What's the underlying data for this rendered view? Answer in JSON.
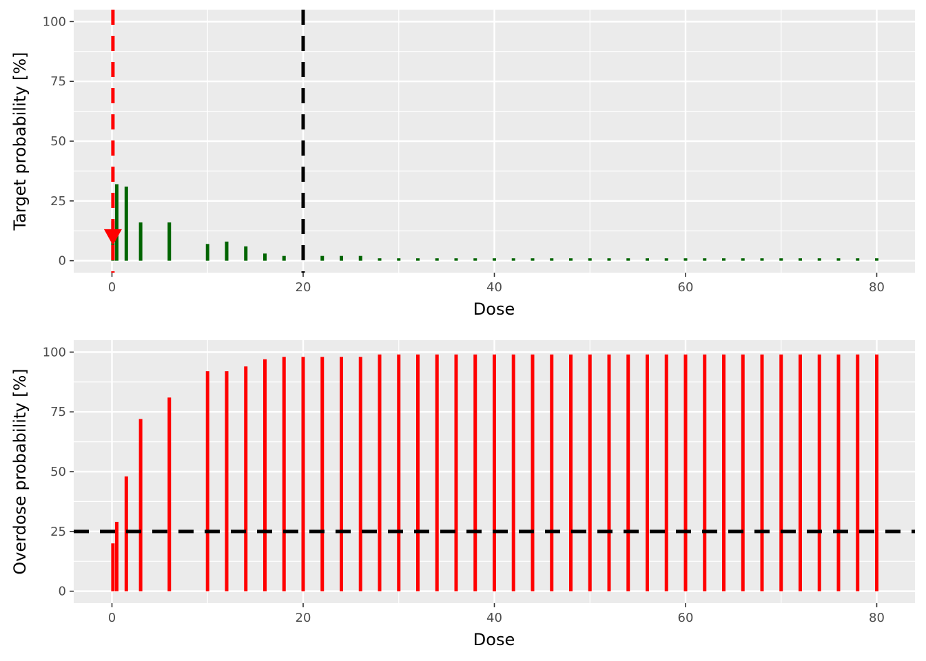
{
  "colors": {
    "panel_bg": "#EBEBEB",
    "grid": "#FFFFFF",
    "target_bar": "#006400",
    "overdose_bar": "#FF0000",
    "ref_line_black": "#000000",
    "ref_line_red": "#FF0000"
  },
  "chart_data": [
    {
      "type": "bar",
      "xlabel": "Dose",
      "ylabel": "Target probability [%]",
      "xlim": [
        -4,
        84
      ],
      "ylim": [
        -5,
        105
      ],
      "xticks": [
        0,
        20,
        40,
        60,
        80
      ],
      "yticks": [
        0,
        25,
        50,
        75,
        100
      ],
      "grid": true,
      "x": [
        0.1,
        0.5,
        1.5,
        3,
        6,
        10,
        12,
        14,
        16,
        18,
        22,
        24,
        26,
        28,
        30,
        32,
        34,
        36,
        38,
        40,
        42,
        44,
        46,
        48,
        50,
        52,
        54,
        56,
        58,
        60,
        62,
        64,
        66,
        68,
        70,
        72,
        74,
        76,
        78,
        80
      ],
      "values": [
        16.5,
        32,
        31,
        16,
        16,
        7,
        8,
        6,
        3,
        2,
        2,
        2,
        2,
        1,
        1,
        1,
        1,
        1,
        1,
        1,
        1,
        1,
        1,
        1,
        1,
        1,
        1,
        1,
        1,
        1,
        1,
        1,
        1,
        1,
        1,
        1,
        1,
        1,
        1,
        1
      ],
      "bar_color": "target_bar",
      "vlines": [
        {
          "x": 20,
          "color": "ref_line_black",
          "dashed": true
        },
        {
          "x": 0.1,
          "color": "ref_line_red",
          "dashed": true
        }
      ],
      "marker": {
        "x": 0.1,
        "y": 10,
        "shape": "down-triangle",
        "color": "ref_line_red"
      }
    },
    {
      "type": "bar",
      "xlabel": "Dose",
      "ylabel": "Overdose probability [%]",
      "xlim": [
        -4,
        84
      ],
      "ylim": [
        -5,
        105
      ],
      "xticks": [
        0,
        20,
        40,
        60,
        80
      ],
      "yticks": [
        0,
        25,
        50,
        75,
        100
      ],
      "grid": true,
      "x": [
        0.1,
        0.5,
        1.5,
        3,
        6,
        10,
        12,
        14,
        16,
        18,
        20,
        22,
        24,
        26,
        28,
        30,
        32,
        34,
        36,
        38,
        40,
        42,
        44,
        46,
        48,
        50,
        52,
        54,
        56,
        58,
        60,
        62,
        64,
        66,
        68,
        70,
        72,
        74,
        76,
        78,
        80
      ],
      "values": [
        20,
        29,
        48,
        72,
        81,
        92,
        92,
        94,
        97,
        98,
        98,
        98,
        98,
        98,
        99,
        99,
        99,
        99,
        99,
        99,
        99,
        99,
        99,
        99,
        99,
        99,
        99,
        99,
        99,
        99,
        99,
        99,
        99,
        99,
        99,
        99,
        99,
        99,
        99,
        99,
        99
      ],
      "bar_color": "overdose_bar",
      "hlines": [
        {
          "y": 25,
          "color": "ref_line_black",
          "dashed": true
        }
      ]
    }
  ]
}
